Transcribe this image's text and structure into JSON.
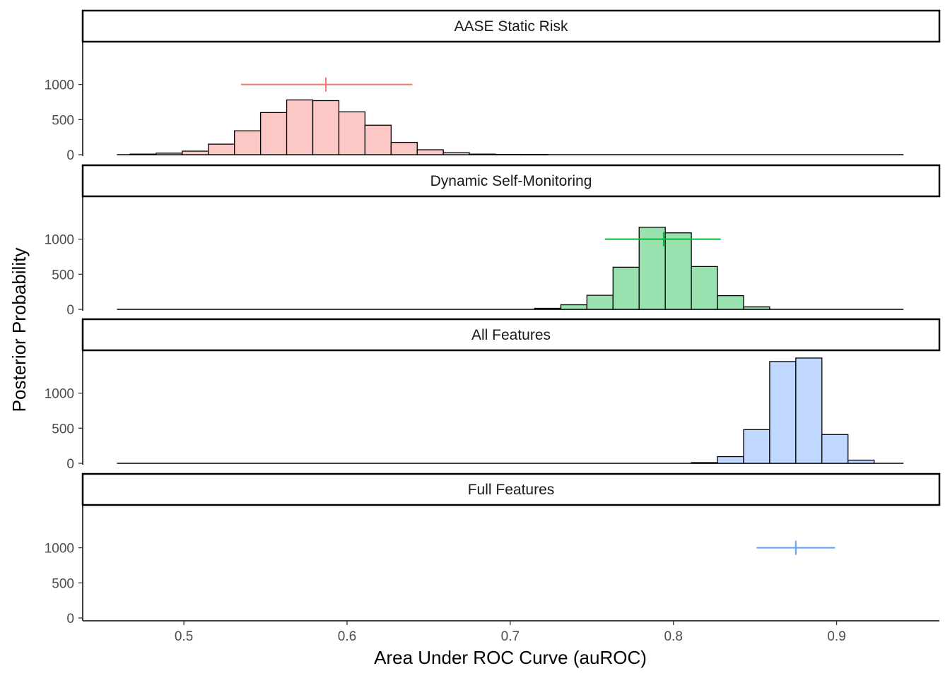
{
  "chart_data": {
    "type": "bar",
    "xlabel": "Area Under ROC Curve (auROC)",
    "ylabel": "Posterior Probability",
    "x_ticks": [
      0.5,
      0.6,
      0.7,
      0.8,
      0.9
    ],
    "x_tick_labels": [
      "0.5",
      "0.6",
      "0.7",
      "0.8",
      "0.9"
    ],
    "xlim": [
      0.438,
      0.963
    ],
    "y_ticks": [
      0,
      500,
      1000
    ],
    "y_tick_labels": [
      "0",
      "500",
      "1000"
    ],
    "ylim": [
      0,
      1570
    ],
    "bin_width": 0.016,
    "baseline_range": [
      0.459,
      0.941
    ],
    "panels": [
      {
        "label": "AASE Static Risk",
        "color": "#f8766d",
        "fill": "#fbc8c5",
        "bins": [
          {
            "x": 0.475,
            "count": 8
          },
          {
            "x": 0.491,
            "count": 22
          },
          {
            "x": 0.507,
            "count": 50
          },
          {
            "x": 0.523,
            "count": 150
          },
          {
            "x": 0.539,
            "count": 340
          },
          {
            "x": 0.555,
            "count": 600
          },
          {
            "x": 0.571,
            "count": 780
          },
          {
            "x": 0.587,
            "count": 770
          },
          {
            "x": 0.603,
            "count": 610
          },
          {
            "x": 0.619,
            "count": 420
          },
          {
            "x": 0.635,
            "count": 175
          },
          {
            "x": 0.651,
            "count": 70
          },
          {
            "x": 0.667,
            "count": 28
          },
          {
            "x": 0.683,
            "count": 8
          },
          {
            "x": 0.699,
            "count": 4
          },
          {
            "x": 0.715,
            "count": 2
          }
        ],
        "interval": {
          "center": 0.587,
          "low": 0.535,
          "high": 0.64,
          "y": 1000
        }
      },
      {
        "label": "Dynamic Self-Monitoring",
        "color": "#00ba38",
        "fill": "#99e2b0",
        "bins": [
          {
            "x": 0.723,
            "count": 15
          },
          {
            "x": 0.739,
            "count": 65
          },
          {
            "x": 0.755,
            "count": 200
          },
          {
            "x": 0.771,
            "count": 600
          },
          {
            "x": 0.787,
            "count": 1170
          },
          {
            "x": 0.803,
            "count": 1090
          },
          {
            "x": 0.819,
            "count": 610
          },
          {
            "x": 0.835,
            "count": 195
          },
          {
            "x": 0.851,
            "count": 35
          }
        ],
        "interval": {
          "center": 0.794,
          "low": 0.758,
          "high": 0.829,
          "y": 1000
        }
      },
      {
        "label": "All Features",
        "color": "#619cff",
        "fill": "#c0d7ff",
        "bins": [
          {
            "x": 0.819,
            "count": 10
          },
          {
            "x": 0.835,
            "count": 95
          },
          {
            "x": 0.851,
            "count": 480
          },
          {
            "x": 0.867,
            "count": 1450
          },
          {
            "x": 0.883,
            "count": 1500
          },
          {
            "x": 0.899,
            "count": 410
          },
          {
            "x": 0.915,
            "count": 45
          }
        ],
        "interval": null
      },
      {
        "label": "Full Features",
        "color": "#619cff",
        "fill": "#c0d7ff",
        "bins": [],
        "interval": {
          "center": 0.875,
          "low": 0.851,
          "high": 0.899,
          "y": 1000
        }
      }
    ]
  }
}
